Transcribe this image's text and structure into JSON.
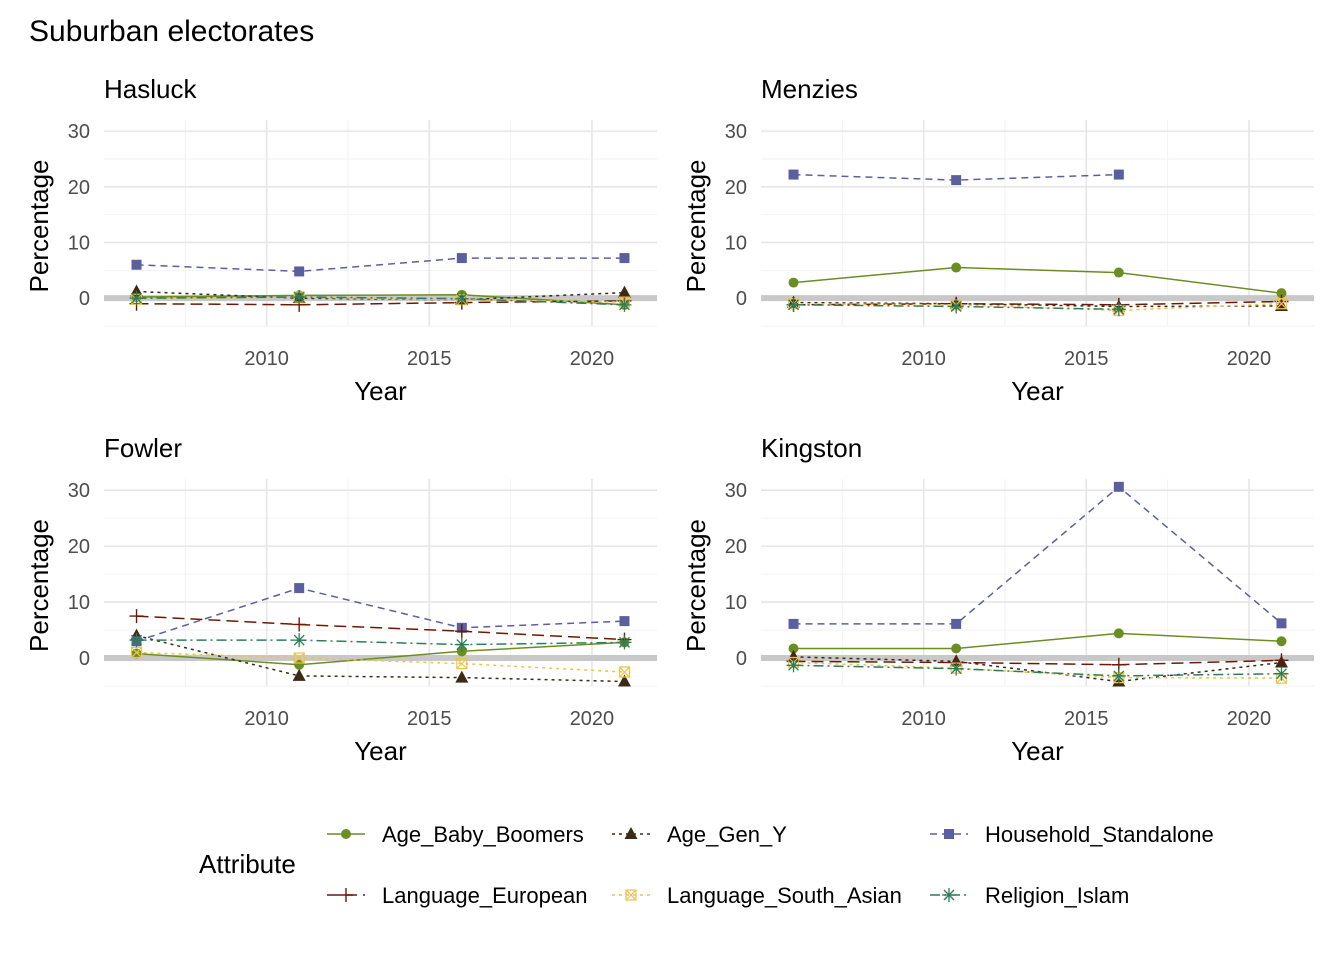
{
  "chart_data": {
    "type": "line",
    "title": "Suburban electorates",
    "xlabel": "Year",
    "ylabel": "Percentage",
    "xlim": [
      2005,
      2022
    ],
    "ylim": [
      -5,
      32
    ],
    "x_ticks": [
      2010,
      2015,
      2020
    ],
    "y_ticks": [
      0,
      10,
      20,
      30
    ],
    "grid": true,
    "legend": {
      "title": "Attribute",
      "position": "bottom",
      "entries": [
        "Age_Baby_Boomers",
        "Age_Gen_Y",
        "Household_Standalone",
        "Language_European",
        "Language_South_Asian",
        "Religion_Islam"
      ]
    },
    "series_styles": {
      "Age_Baby_Boomers": {
        "color": "#6b8e23",
        "dash": "solid",
        "marker": "circle"
      },
      "Age_Gen_Y": {
        "color": "#3b2a14",
        "dash": "dotted",
        "marker": "triangle"
      },
      "Household_Standalone": {
        "color": "#5b5fa0",
        "dash": "dashed",
        "marker": "square"
      },
      "Language_European": {
        "color": "#6b1a05",
        "dash": "longdash",
        "marker": "plus"
      },
      "Language_South_Asian": {
        "color": "#f0c246",
        "dash": "dotted",
        "marker": "boxcross"
      },
      "Religion_Islam": {
        "color": "#2e7d5a",
        "dash": "dotdash",
        "marker": "asterisk"
      }
    },
    "panels": [
      {
        "title": "Hasluck",
        "series": [
          {
            "name": "Age_Baby_Boomers",
            "x": [
              2006,
              2011,
              2016,
              2021
            ],
            "values": [
              0.2,
              0.5,
              0.6,
              -1.2
            ]
          },
          {
            "name": "Age_Gen_Y",
            "x": [
              2006,
              2011,
              2016,
              2021
            ],
            "values": [
              1.2,
              0.0,
              -0.3,
              1.0
            ]
          },
          {
            "name": "Household_Standalone",
            "x": [
              2006,
              2011,
              2016,
              2021
            ],
            "values": [
              6.0,
              4.8,
              7.2,
              7.2
            ]
          },
          {
            "name": "Language_European",
            "x": [
              2006,
              2011,
              2016,
              2021
            ],
            "values": [
              -1.0,
              -1.2,
              -0.8,
              -0.5
            ]
          },
          {
            "name": "Language_South_Asian",
            "x": [
              2006,
              2011,
              2016,
              2021
            ],
            "values": [
              -0.2,
              0.2,
              -0.3,
              -0.7
            ]
          },
          {
            "name": "Religion_Islam",
            "x": [
              2006,
              2011,
              2016,
              2021
            ],
            "values": [
              0.0,
              0.2,
              -0.1,
              -1.2
            ]
          }
        ]
      },
      {
        "title": "Menzies",
        "series": [
          {
            "name": "Age_Baby_Boomers",
            "x": [
              2006,
              2011,
              2016,
              2021
            ],
            "values": [
              2.8,
              5.5,
              4.6,
              0.9
            ]
          },
          {
            "name": "Age_Gen_Y",
            "x": [
              2006,
              2011,
              2016,
              2021
            ],
            "values": [
              -0.8,
              -1.0,
              -1.5,
              -1.4
            ]
          },
          {
            "name": "Household_Standalone",
            "x": [
              2006,
              2011,
              2016
            ],
            "values": [
              22.2,
              21.2,
              22.2
            ]
          },
          {
            "name": "Language_European",
            "x": [
              2006,
              2011,
              2016,
              2021
            ],
            "values": [
              -1.2,
              -1.0,
              -1.2,
              -0.6
            ]
          },
          {
            "name": "Language_South_Asian",
            "x": [
              2006,
              2011,
              2016,
              2021
            ],
            "values": [
              -1.0,
              -1.2,
              -2.2,
              -1.0
            ]
          },
          {
            "name": "Religion_Islam",
            "x": [
              2006,
              2011,
              2016
            ],
            "values": [
              -1.2,
              -1.5,
              -2.0
            ]
          }
        ]
      },
      {
        "title": "Fowler",
        "series": [
          {
            "name": "Age_Baby_Boomers",
            "x": [
              2006,
              2011,
              2016,
              2021
            ],
            "values": [
              0.8,
              -1.2,
              1.2,
              2.8
            ]
          },
          {
            "name": "Age_Gen_Y",
            "x": [
              2006,
              2011,
              2016,
              2021
            ],
            "values": [
              4.0,
              -3.2,
              -3.5,
              -4.2
            ]
          },
          {
            "name": "Household_Standalone",
            "x": [
              2006,
              2011,
              2016,
              2021
            ],
            "values": [
              3.0,
              12.5,
              5.4,
              6.6
            ]
          },
          {
            "name": "Language_European",
            "x": [
              2006,
              2011,
              2016,
              2021
            ],
            "values": [
              7.5,
              6.0,
              4.8,
              3.3
            ]
          },
          {
            "name": "Language_South_Asian",
            "x": [
              2006,
              2011,
              2016,
              2021
            ],
            "values": [
              1.0,
              0.0,
              -1.0,
              -2.5
            ]
          },
          {
            "name": "Religion_Islam",
            "x": [
              2006,
              2011,
              2016,
              2021
            ],
            "values": [
              3.2,
              3.2,
              2.4,
              2.8
            ]
          }
        ]
      },
      {
        "title": "Kingston",
        "series": [
          {
            "name": "Age_Baby_Boomers",
            "x": [
              2006,
              2011,
              2016,
              2021
            ],
            "values": [
              1.7,
              1.7,
              4.4,
              3.0
            ]
          },
          {
            "name": "Age_Gen_Y",
            "x": [
              2006,
              2011,
              2016,
              2021
            ],
            "values": [
              0.2,
              -0.6,
              -4.2,
              -0.8
            ]
          },
          {
            "name": "Household_Standalone",
            "x": [
              2006,
              2011,
              2016,
              2021
            ],
            "values": [
              6.1,
              6.1,
              30.6,
              6.2
            ]
          },
          {
            "name": "Language_European",
            "x": [
              2006,
              2011,
              2016,
              2021
            ],
            "values": [
              -0.6,
              -0.8,
              -1.2,
              -0.4
            ]
          },
          {
            "name": "Language_South_Asian",
            "x": [
              2006,
              2011,
              2016,
              2021
            ],
            "values": [
              -0.8,
              -1.8,
              -3.5,
              -3.6
            ]
          },
          {
            "name": "Religion_Islam",
            "x": [
              2006,
              2011,
              2016,
              2021
            ],
            "values": [
              -1.3,
              -1.9,
              -3.2,
              -2.8
            ]
          }
        ]
      }
    ]
  }
}
